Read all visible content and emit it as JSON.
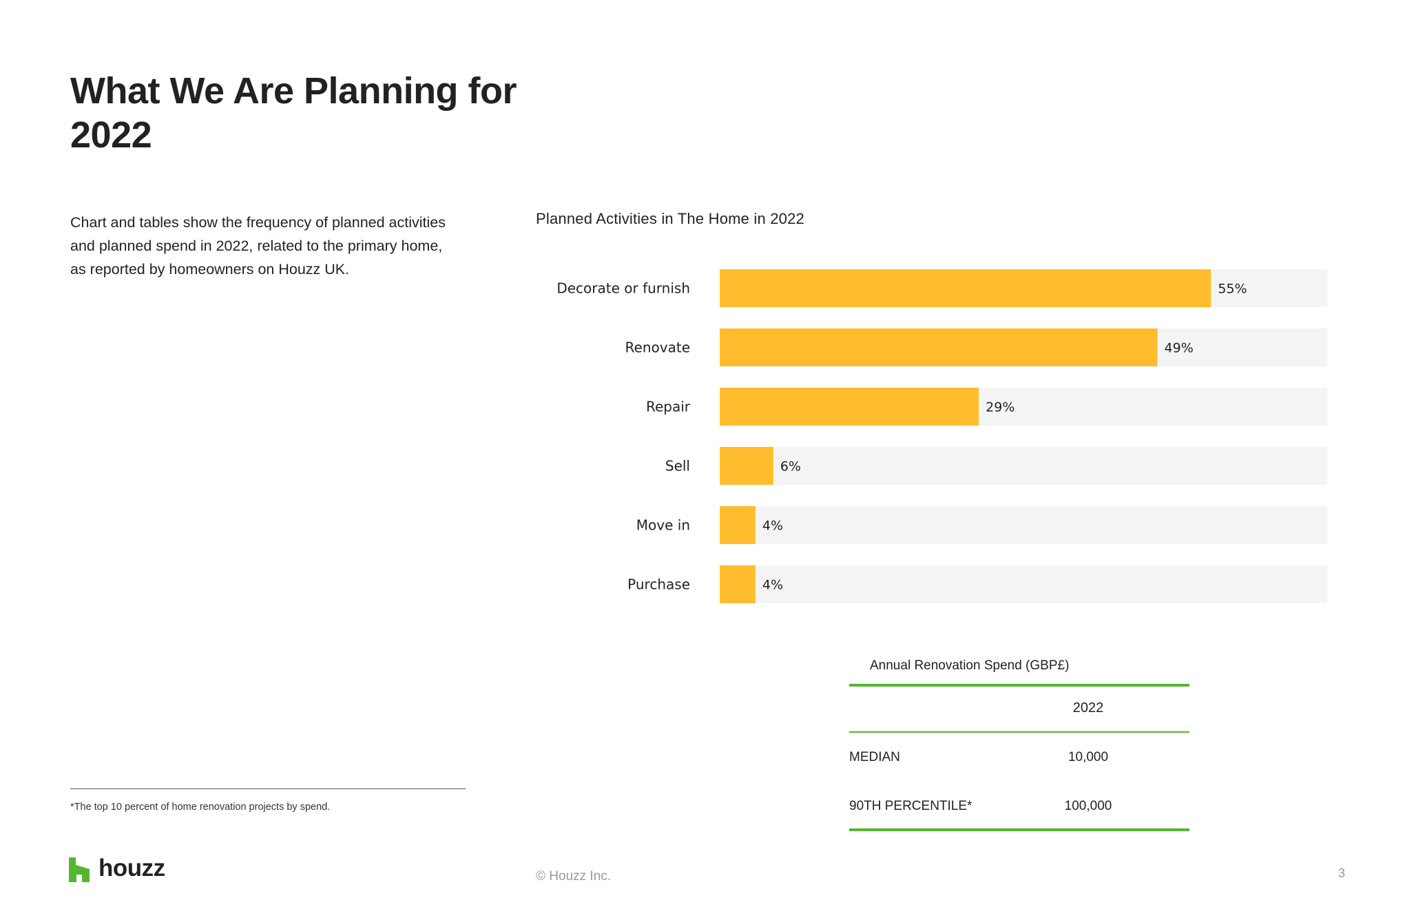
{
  "page": {
    "title": "What We Are Planning for\n2022",
    "intro": "Chart and tables show the frequency of planned activities and planned spend in 2022, related to the primary home, as reported by homeowners on Houzz UK.",
    "footnote": "*The top 10 percent of home renovation projects by spend.",
    "logo_text": "houzz",
    "copyright": "© Houzz Inc.",
    "page_number": "3",
    "colors": {
      "bar": "#ffbd2e",
      "track": "#f4f4f4",
      "table_rule": "#53b630",
      "logo": "#53b630"
    }
  },
  "chart_data": {
    "type": "bar",
    "orientation": "horizontal",
    "title": "Planned Activities in The Home in 2022",
    "categories": [
      "Decorate or furnish",
      "Renovate",
      "Repair",
      "Sell",
      "Move in",
      "Purchase"
    ],
    "values": [
      55,
      49,
      29,
      6,
      4,
      4
    ],
    "value_labels": [
      "55%",
      "49%",
      "29%",
      "6%",
      "4%",
      "4%"
    ],
    "unit": "%",
    "xlim": [
      0,
      68
    ],
    "grid": false,
    "legend": false
  },
  "spend_table": {
    "title": "Annual Renovation Spend  (GBP£)",
    "column": "2022",
    "rows": [
      {
        "label": "MEDIAN",
        "value": "10,000"
      },
      {
        "label": "90TH PERCENTILE*",
        "value": "100,000"
      }
    ]
  }
}
